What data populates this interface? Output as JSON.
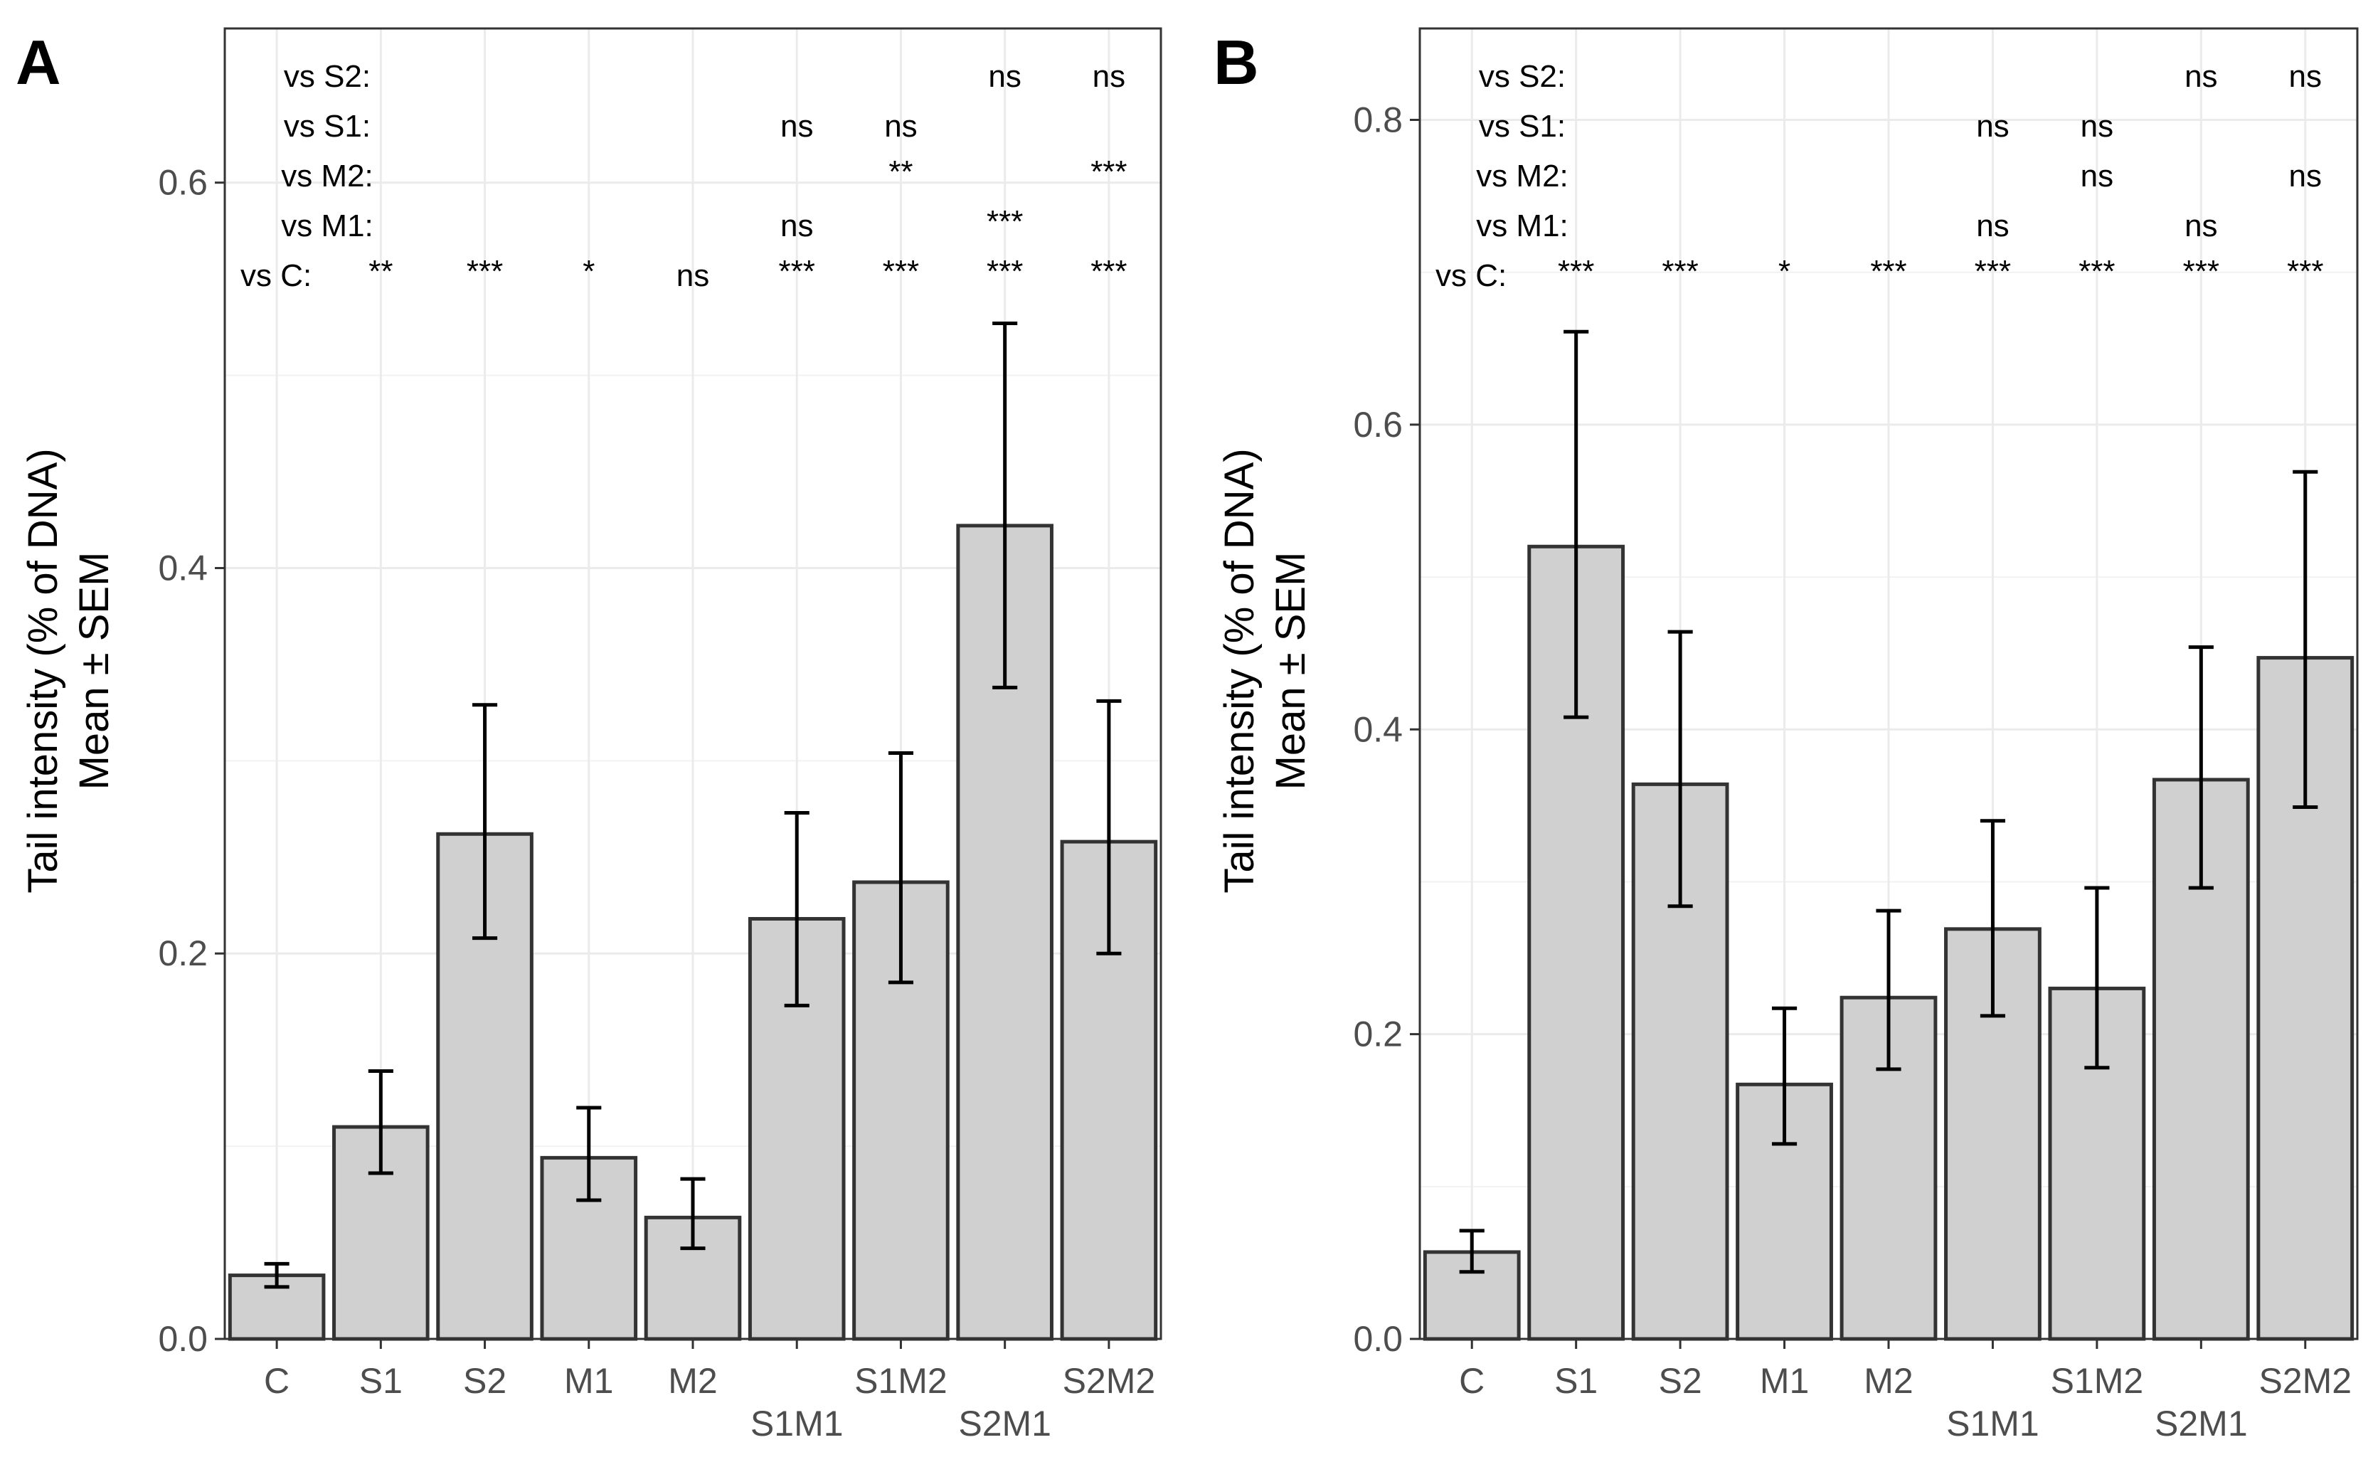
{
  "figure": {
    "panel_labels": [
      "A",
      "B"
    ],
    "y_label_line1": "Tail intensity (% of DNA)",
    "y_label_line2": "Mean ± SEM"
  },
  "chart_data": [
    {
      "type": "bar",
      "panel": "A",
      "categories": [
        "C",
        "S1",
        "S2",
        "M1",
        "M2",
        "S1M1",
        "S1M2",
        "S2M1",
        "S2M2"
      ],
      "values": [
        0.033,
        0.11,
        0.262,
        0.094,
        0.063,
        0.218,
        0.237,
        0.422,
        0.258
      ],
      "error_low": [
        0.027,
        0.086,
        0.208,
        0.072,
        0.047,
        0.173,
        0.185,
        0.338,
        0.2
      ],
      "error_high": [
        0.039,
        0.139,
        0.329,
        0.12,
        0.083,
        0.273,
        0.304,
        0.527,
        0.331
      ],
      "ylim": [
        0,
        0.68
      ],
      "yticks": [
        0.0,
        0.2,
        0.4,
        0.6
      ],
      "ytick_labels": [
        "0.0",
        "0.2",
        "0.4",
        "0.6"
      ],
      "ylabel": "Tail intensity (% of DNA) Mean ± SEM",
      "xlabel": "",
      "bar_color": "#d0d0d0",
      "bar_edge_color": "#333333",
      "grid": true,
      "significance": [
        {
          "label": "vs S2:",
          "marks": [
            "",
            "",
            "",
            "",
            "",
            "",
            "",
            "ns",
            "ns"
          ]
        },
        {
          "label": "vs S1:",
          "marks": [
            "",
            "",
            "",
            "",
            "",
            "ns",
            "ns",
            "",
            ""
          ]
        },
        {
          "label": "vs M2:",
          "marks": [
            "",
            "",
            "",
            "",
            "",
            "",
            "**",
            "",
            "***"
          ]
        },
        {
          "label": "vs M1:",
          "marks": [
            "",
            "",
            "",
            "",
            "",
            "ns",
            "",
            "***",
            ""
          ]
        },
        {
          "label": "vs C:",
          "marks": [
            "",
            "**",
            "***",
            "*",
            "ns",
            "***",
            "***",
            "***",
            "***"
          ]
        }
      ]
    },
    {
      "type": "bar",
      "panel": "B",
      "categories": [
        "C",
        "S1",
        "S2",
        "M1",
        "M2",
        "S1M1",
        "S1M2",
        "S2M1",
        "S2M2"
      ],
      "values": [
        0.057,
        0.52,
        0.364,
        0.167,
        0.224,
        0.269,
        0.23,
        0.367,
        0.447
      ],
      "error_low": [
        0.044,
        0.408,
        0.284,
        0.128,
        0.177,
        0.212,
        0.178,
        0.296,
        0.349
      ],
      "error_high": [
        0.071,
        0.661,
        0.464,
        0.217,
        0.281,
        0.34,
        0.296,
        0.454,
        0.569
      ],
      "ylim": [
        0,
        0.86
      ],
      "yticks": [
        0.0,
        0.2,
        0.4,
        0.6,
        0.8
      ],
      "ytick_labels": [
        "0.0",
        "0.2",
        "0.4",
        "0.6",
        "0.8"
      ],
      "ylabel": "Tail intensity (% of DNA) Mean ± SEM",
      "xlabel": "",
      "bar_color": "#d0d0d0",
      "bar_edge_color": "#333333",
      "grid": true,
      "significance": [
        {
          "label": "vs S2:",
          "marks": [
            "",
            "",
            "",
            "",
            "",
            "",
            "",
            "ns",
            "ns"
          ]
        },
        {
          "label": "vs S1:",
          "marks": [
            "",
            "",
            "",
            "",
            "",
            "ns",
            "ns",
            "",
            ""
          ]
        },
        {
          "label": "vs M2:",
          "marks": [
            "",
            "",
            "",
            "",
            "",
            "",
            "ns",
            "",
            "ns"
          ]
        },
        {
          "label": "vs M1:",
          "marks": [
            "",
            "",
            "",
            "",
            "",
            "ns",
            "",
            "ns",
            ""
          ]
        },
        {
          "label": "vs C:",
          "marks": [
            "",
            "***",
            "***",
            "*",
            "***",
            "***",
            "***",
            "***",
            "***"
          ]
        }
      ]
    }
  ]
}
